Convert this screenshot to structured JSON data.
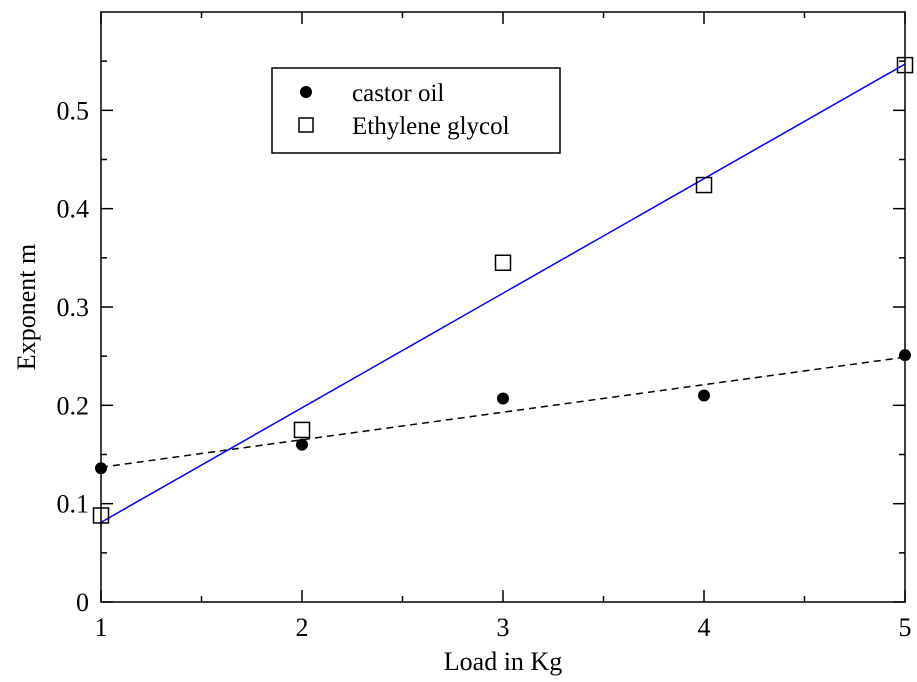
{
  "chart_data": {
    "type": "scatter",
    "xlabel": "Load in Kg",
    "ylabel": "Exponent m",
    "xlim": [
      1,
      5
    ],
    "ylim": [
      0,
      0.6
    ],
    "x_ticks": [
      1,
      2,
      3,
      4,
      5
    ],
    "x_tick_labels": [
      "1",
      "2",
      "3",
      "4",
      "5"
    ],
    "y_ticks": [
      0,
      0.1,
      0.2,
      0.3,
      0.4,
      0.5
    ],
    "y_tick_labels": [
      "0",
      "0.1",
      "0.2",
      "0.3",
      "0.4",
      "0.5"
    ],
    "grid": false,
    "legend_position": "top-left",
    "series": [
      {
        "name": "castor oil",
        "marker": "filled-circle",
        "color": "#000000",
        "x": [
          1,
          2,
          3,
          4,
          5
        ],
        "y": [
          0.136,
          0.16,
          0.207,
          0.21,
          0.251
        ],
        "fit": {
          "style": "dashed",
          "color": "#000000",
          "x": [
            1,
            5
          ],
          "y": [
            0.137,
            0.249
          ]
        }
      },
      {
        "name": "Ethylene glycol",
        "marker": "open-square",
        "color": "#000000",
        "x": [
          1,
          2,
          3,
          4,
          5
        ],
        "y": [
          0.088,
          0.175,
          0.345,
          0.424,
          0.546
        ],
        "fit": {
          "style": "solid",
          "color": "#0000ff",
          "x": [
            1,
            5
          ],
          "y": [
            0.081,
            0.547
          ]
        }
      }
    ]
  }
}
